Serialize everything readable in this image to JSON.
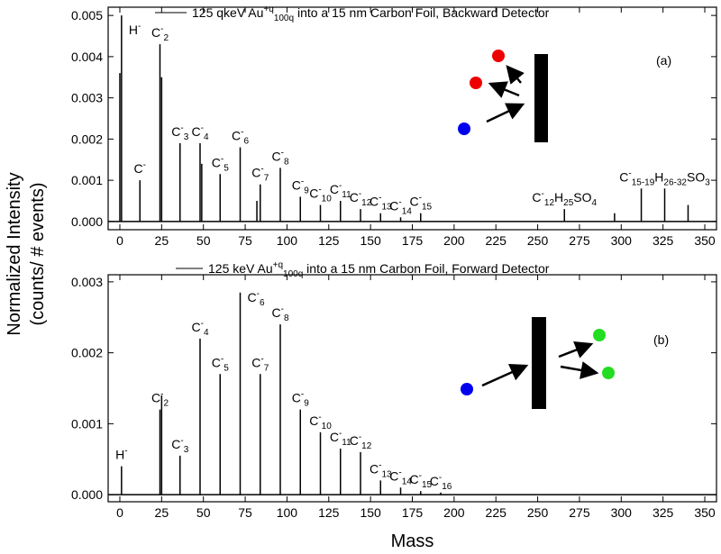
{
  "chart_data": [
    {
      "type": "stem",
      "series": [
        {
          "name": {
            "text": "125 qkeV Au",
            "sup": "+q",
            "sub": "100q",
            "after": " into a 15 nm Carbon Foil, Backward Detector"
          },
          "color": "#000000",
          "x": [
            0,
            1,
            12,
            24,
            25,
            36,
            48,
            49,
            60,
            72,
            82,
            84,
            96,
            108,
            120,
            132,
            144,
            156,
            168,
            180,
            266,
            296,
            312,
            326,
            340
          ],
          "values": [
            0.0036,
            0.005,
            0.001,
            0.0043,
            0.0035,
            0.0019,
            0.0019,
            0.0014,
            0.00115,
            0.0018,
            0.0005,
            0.0009,
            0.0013,
            0.0006,
            0.0004,
            0.0005,
            0.0003,
            0.0002,
            0.0001,
            0.0002,
            0.0003,
            0.0002,
            0.0008,
            0.0008,
            0.0004
          ],
          "labels": [
            null,
            {
              "base": "H",
              "sup": "-"
            },
            {
              "base": "C",
              "sup": "-"
            },
            {
              "base": "C",
              "sub": "2",
              "sup": "-"
            },
            null,
            {
              "base": "C",
              "sub": "3",
              "sup": "-"
            },
            {
              "base": "C",
              "sub": "4",
              "sup": "-"
            },
            null,
            {
              "base": "C",
              "sub": "5",
              "sup": "-"
            },
            {
              "base": "C",
              "sub": "6",
              "sup": "-"
            },
            null,
            {
              "base": "C",
              "sub": "7",
              "sup": "-"
            },
            {
              "base": "C",
              "sub": "8",
              "sup": "-"
            },
            {
              "base": "C",
              "sub": "9",
              "sup": "-"
            },
            {
              "base": "C",
              "sub": "10",
              "sup": "-"
            },
            {
              "base": "C",
              "sub": "11",
              "sup": "-"
            },
            {
              "base": "C",
              "sub": "12",
              "sup": "-"
            },
            {
              "base": "C",
              "sub": "13",
              "sup": "-"
            },
            {
              "base": "C",
              "sub": "14",
              "sup": "-"
            },
            {
              "base": "C",
              "sub": "15",
              "sup": "-"
            },
            {
              "base": "C",
              "sub": "12",
              "mid": "H",
              "sub2": "25",
              "tail": "SO",
              "sub3": "4",
              "sup": "-"
            },
            null,
            null,
            {
              "base": "C",
              "sub": "15-19",
              "mid": "H",
              "sub2": "26-32",
              "tail": "SO",
              "sub3": "3",
              "sup": "-"
            },
            null
          ]
        }
      ],
      "panel_label": "(a)",
      "xlim": [
        -7,
        357
      ],
      "xticks": [
        0,
        25,
        50,
        75,
        100,
        125,
        150,
        175,
        200,
        225,
        250,
        275,
        300,
        325,
        350
      ],
      "ylim": [
        -0.0002,
        0.0052
      ],
      "yticks": [
        {
          "value": 0,
          "label": "0.000"
        },
        {
          "value": 0.001,
          "label": "0.001"
        },
        {
          "value": 0.002,
          "label": "0.002"
        },
        {
          "value": 0.003,
          "label": "0.003"
        },
        {
          "value": 0.004,
          "label": "0.004"
        },
        {
          "value": 0.005,
          "label": "0.005"
        }
      ],
      "ylabel": [
        "Normalized Intensity",
        "(counts/ # events)"
      ]
    },
    {
      "type": "stem",
      "series": [
        {
          "name": {
            "text": "125 keV Au",
            "sup": "+q",
            "sub": "100q",
            "after": " into a 15 nm Carbon Foil, Forward Detector"
          },
          "color": "#000000",
          "x": [
            1,
            24,
            25,
            36,
            48,
            60,
            72,
            84,
            96,
            108,
            120,
            132,
            144,
            156,
            168,
            180,
            192
          ],
          "values": [
            0.0004,
            0.0012,
            0.0014,
            0.00055,
            0.0022,
            0.0017,
            0.00285,
            0.0017,
            0.0024,
            0.0012,
            0.00088,
            0.00065,
            0.0006,
            0.0002,
            0.0001,
            5e-05,
            3e-05
          ],
          "labels": [
            {
              "base": "H",
              "sup": "-"
            },
            {
              "base": "C",
              "sub": "2",
              "sup": "-"
            },
            null,
            {
              "base": "C",
              "sub": "3",
              "sup": "-"
            },
            {
              "base": "C",
              "sub": "4",
              "sup": "-"
            },
            {
              "base": "C",
              "sub": "5",
              "sup": "-"
            },
            {
              "base": "C",
              "sub": "6",
              "sup": "-"
            },
            {
              "base": "C",
              "sub": "7",
              "sup": "-"
            },
            {
              "base": "C",
              "sub": "8",
              "sup": "-"
            },
            {
              "base": "C",
              "sub": "9",
              "sup": "-"
            },
            {
              "base": "C",
              "sub": "10",
              "sup": "-"
            },
            {
              "base": "C",
              "sub": "11",
              "sup": "-"
            },
            {
              "base": "C",
              "sub": "12",
              "sup": "-"
            },
            {
              "base": "C",
              "sub": "13",
              "sup": "-"
            },
            {
              "base": "C",
              "sub": "14",
              "sup": "-"
            },
            {
              "base": "C",
              "sub": "15",
              "sup": "-"
            },
            {
              "base": "C",
              "sub": "16",
              "sup": "-"
            }
          ]
        }
      ],
      "panel_label": "(b)",
      "xlim": [
        -7,
        357
      ],
      "xticks": [
        0,
        25,
        50,
        75,
        100,
        125,
        150,
        175,
        200,
        225,
        250,
        275,
        300,
        325,
        350
      ],
      "ylim": [
        -0.0001,
        0.0031
      ],
      "yticks": [
        {
          "value": 0,
          "label": "0.000"
        },
        {
          "value": 0.001,
          "label": "0.001"
        },
        {
          "value": 0.002,
          "label": "0.002"
        },
        {
          "value": 0.003,
          "label": "0.003"
        }
      ],
      "xlabel": "Mass"
    }
  ]
}
